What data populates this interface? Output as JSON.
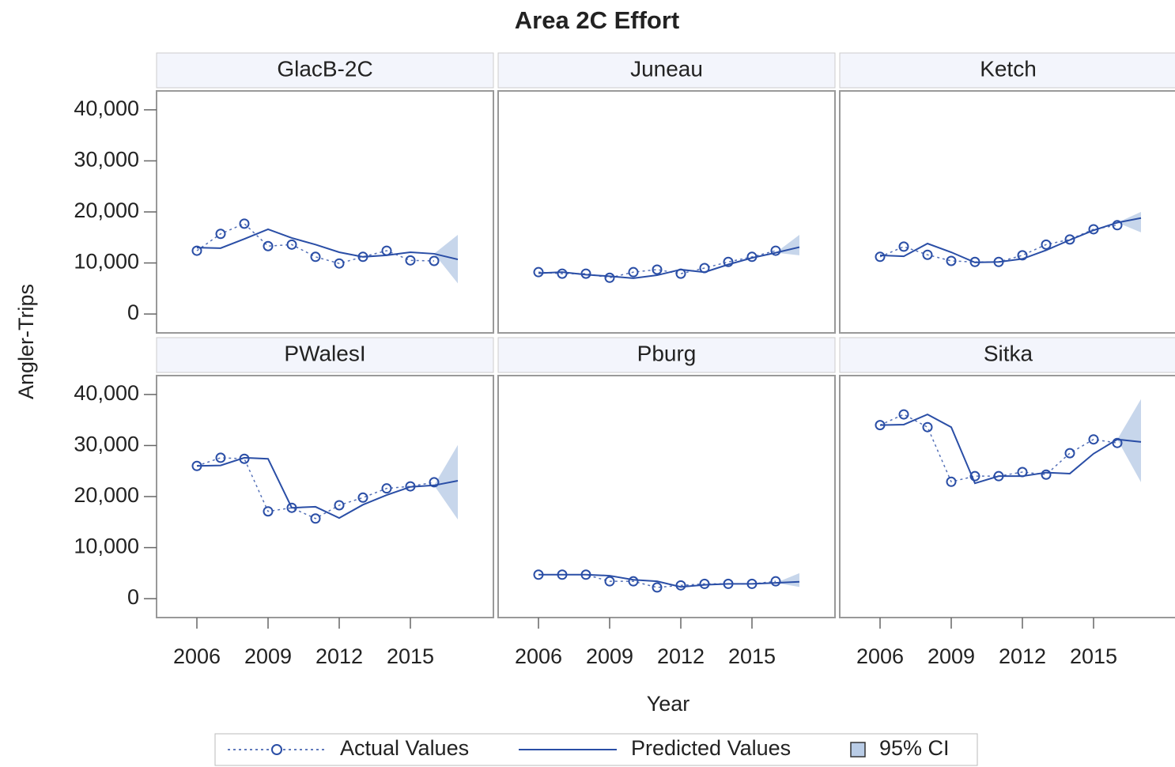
{
  "title": "Area 2C Effort",
  "x_label": "Year",
  "y_label": "Angler-Trips",
  "xlim": [
    2004.3,
    2018.5
  ],
  "xticks": [
    2006,
    2009,
    2012,
    2015
  ],
  "ylim": [
    -3700,
    43700
  ],
  "yticks": [
    0,
    {
      "value": 10000,
      "label": "10,000"
    },
    {
      "value": 20000,
      "label": "20,000"
    },
    {
      "value": 30000,
      "label": "30,000"
    },
    {
      "value": 40000,
      "label": "40,000"
    }
  ],
  "series": [
    {
      "name": "Actual Values",
      "color": "#2a4ea6"
    },
    {
      "name": "Predicted Values",
      "color": "#2a4ea6"
    },
    {
      "name": "95% CI",
      "color": "#b9cce6"
    }
  ],
  "chart_data": [
    {
      "type": "line",
      "title": "GlacB-2C",
      "x": [
        2006,
        2007,
        2008,
        2009,
        2010,
        2011,
        2012,
        2013,
        2014,
        2015,
        2016,
        2017
      ],
      "actual": [
        12400,
        15700,
        17700,
        13300,
        13600,
        11200,
        9900,
        11200,
        12400,
        10500,
        10400,
        null
      ],
      "predicted": [
        13000,
        12900,
        14700,
        16600,
        14900,
        13600,
        12100,
        11200,
        11500,
        12100,
        11800,
        10700
      ],
      "ci_lower": [
        null,
        null,
        null,
        null,
        null,
        null,
        null,
        null,
        null,
        null,
        null,
        6000
      ],
      "ci_upper": [
        null,
        null,
        null,
        null,
        null,
        null,
        null,
        null,
        null,
        null,
        null,
        15500
      ]
    },
    {
      "type": "line",
      "title": "Juneau",
      "x": [
        2006,
        2007,
        2008,
        2009,
        2010,
        2011,
        2012,
        2013,
        2014,
        2015,
        2016,
        2017
      ],
      "actual": [
        8200,
        7900,
        7900,
        7100,
        8200,
        8700,
        7900,
        9000,
        10200,
        11200,
        12400,
        null
      ],
      "predicted": [
        8000,
        8200,
        7700,
        7400,
        7000,
        7600,
        8700,
        8200,
        9700,
        11000,
        12000,
        13100
      ],
      "ci_lower": [
        null,
        null,
        null,
        null,
        null,
        null,
        null,
        null,
        null,
        null,
        null,
        11500
      ],
      "ci_upper": [
        null,
        null,
        null,
        null,
        null,
        null,
        null,
        null,
        null,
        null,
        null,
        15500
      ]
    },
    {
      "type": "line",
      "title": "Ketch",
      "x": [
        2006,
        2007,
        2008,
        2009,
        2010,
        2011,
        2012,
        2013,
        2014,
        2015,
        2016,
        2017
      ],
      "actual": [
        11200,
        13200,
        11600,
        10400,
        10200,
        10200,
        11500,
        13600,
        14600,
        16600,
        17400,
        null
      ],
      "predicted": [
        11500,
        11300,
        13800,
        12100,
        10100,
        10200,
        10800,
        12500,
        14500,
        16400,
        17900,
        18800
      ],
      "ci_lower": [
        null,
        null,
        null,
        null,
        null,
        null,
        null,
        null,
        null,
        null,
        null,
        16000
      ],
      "ci_upper": [
        null,
        null,
        null,
        null,
        null,
        null,
        null,
        null,
        null,
        null,
        null,
        20000
      ]
    },
    {
      "type": "line",
      "title": "PWalesI",
      "x": [
        2006,
        2007,
        2008,
        2009,
        2010,
        2011,
        2012,
        2013,
        2014,
        2015,
        2016,
        2017
      ],
      "actual": [
        26000,
        27600,
        27400,
        17100,
        17800,
        15700,
        18300,
        19800,
        21600,
        22000,
        22800,
        null
      ],
      "predicted": [
        26000,
        26100,
        27600,
        27400,
        17800,
        18000,
        15800,
        18400,
        20300,
        21900,
        22200,
        23100
      ],
      "ci_lower": [
        null,
        null,
        null,
        null,
        null,
        null,
        null,
        null,
        null,
        null,
        null,
        15500
      ],
      "ci_upper": [
        null,
        null,
        null,
        null,
        null,
        null,
        null,
        null,
        null,
        null,
        null,
        30100
      ]
    },
    {
      "type": "line",
      "title": "Pburg",
      "x": [
        2006,
        2007,
        2008,
        2009,
        2010,
        2011,
        2012,
        2013,
        2014,
        2015,
        2016,
        2017
      ],
      "actual": [
        4700,
        4700,
        4700,
        3400,
        3400,
        2200,
        2600,
        2900,
        2900,
        2900,
        3400,
        null
      ],
      "predicted": [
        4700,
        4700,
        4700,
        4500,
        3700,
        3400,
        2300,
        2700,
        2900,
        2900,
        3100,
        3300
      ],
      "ci_lower": [
        null,
        null,
        null,
        null,
        null,
        null,
        null,
        null,
        null,
        null,
        null,
        2300
      ],
      "ci_upper": [
        null,
        null,
        null,
        null,
        null,
        null,
        null,
        null,
        null,
        null,
        null,
        5000
      ]
    },
    {
      "type": "line",
      "title": "Sitka",
      "x": [
        2006,
        2007,
        2008,
        2009,
        2010,
        2011,
        2012,
        2013,
        2014,
        2015,
        2016,
        2017
      ],
      "actual": [
        34000,
        36100,
        33600,
        22900,
        24000,
        24000,
        24800,
        24300,
        28500,
        31200,
        30500,
        null
      ],
      "predicted": [
        34000,
        34100,
        36100,
        33600,
        22600,
        24000,
        24000,
        24700,
        24500,
        28400,
        31200,
        30700
      ],
      "ci_lower": [
        null,
        null,
        null,
        null,
        null,
        null,
        null,
        null,
        null,
        null,
        null,
        22800
      ],
      "ci_upper": [
        null,
        null,
        null,
        null,
        null,
        null,
        null,
        null,
        null,
        null,
        null,
        39100
      ]
    }
  ]
}
